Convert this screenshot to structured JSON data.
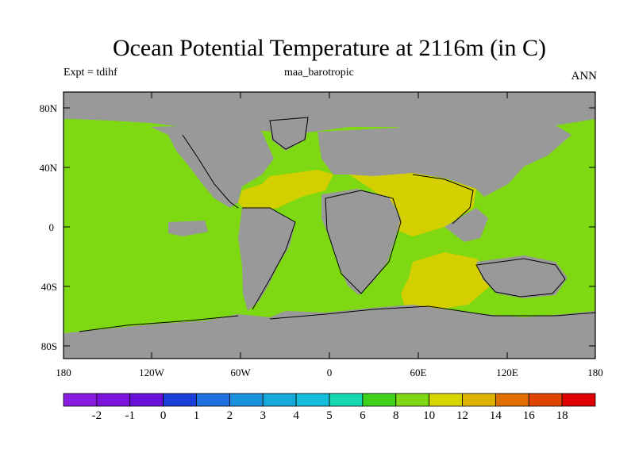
{
  "title": "Ocean Potential Temperature at 2116m (in C)",
  "expt": "Expt = tdihf",
  "case": "maa_barotropic",
  "season": "ANN",
  "lat_labels": [
    "80N",
    "40N",
    "0",
    "40S",
    "80S"
  ],
  "lon_labels": [
    "180",
    "120W",
    "60W",
    "0",
    "60E",
    "120E",
    "180"
  ],
  "colorbar": {
    "tick_labels": [
      "-2",
      "-1",
      "0",
      "1",
      "2",
      "3",
      "4",
      "5",
      "6",
      "8",
      "10",
      "12",
      "14",
      "16",
      "18"
    ],
    "colors": [
      "#8a1ce0",
      "#7a14da",
      "#6a10d8",
      "#1a3fd8",
      "#1f6fe0",
      "#1b90de",
      "#16aadc",
      "#14bedc",
      "#17d6b2",
      "#3ed21a",
      "#7ed812",
      "#d8d400",
      "#dbb300",
      "#de6f00",
      "#e04200",
      "#dc0000"
    ]
  },
  "map_colors": {
    "land": "#999999",
    "ocean_6_10": "#7ed812",
    "ocean_10_12": "#d4cf00"
  }
}
